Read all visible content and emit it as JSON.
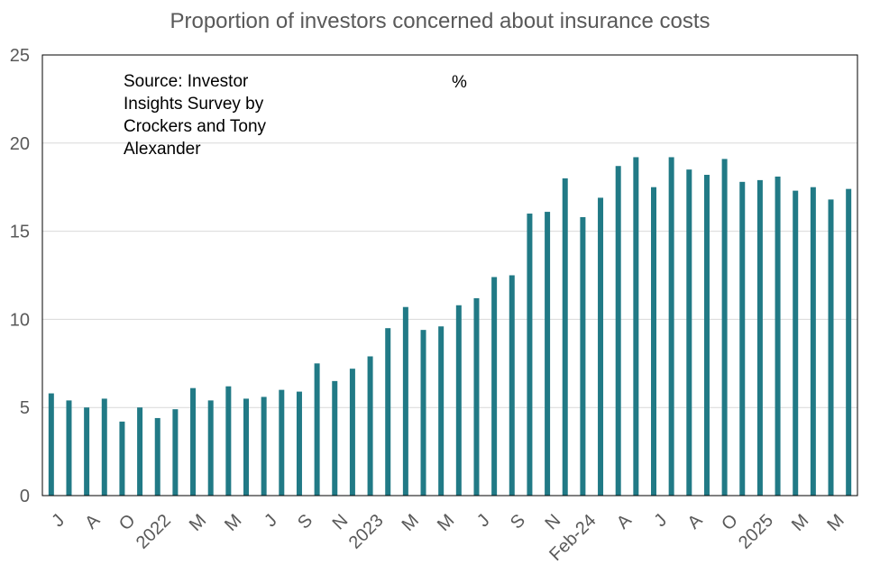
{
  "chart_data": {
    "type": "bar",
    "title": "Proportion of investors concerned about insurance costs",
    "annotation": "Source: Investor Insights Survey by Crockers and Tony Alexander",
    "unit_label": "%",
    "ylim": [
      0,
      25
    ],
    "yticks": [
      0,
      5,
      10,
      15,
      20,
      25
    ],
    "grid": true,
    "bar_color": "#217A86",
    "xtick_labels": [
      {
        "index": 0,
        "label": "J"
      },
      {
        "index": 2,
        "label": "A"
      },
      {
        "index": 4,
        "label": "O"
      },
      {
        "index": 6,
        "label": "2022"
      },
      {
        "index": 8,
        "label": "M"
      },
      {
        "index": 10,
        "label": "M"
      },
      {
        "index": 12,
        "label": "J"
      },
      {
        "index": 14,
        "label": "S"
      },
      {
        "index": 16,
        "label": "N"
      },
      {
        "index": 18,
        "label": "2023"
      },
      {
        "index": 20,
        "label": "M"
      },
      {
        "index": 22,
        "label": "M"
      },
      {
        "index": 24,
        "label": "J"
      },
      {
        "index": 26,
        "label": "S"
      },
      {
        "index": 28,
        "label": "N"
      },
      {
        "index": 30,
        "label": "Feb-24"
      },
      {
        "index": 32,
        "label": "A"
      },
      {
        "index": 34,
        "label": "J"
      },
      {
        "index": 36,
        "label": "A"
      },
      {
        "index": 38,
        "label": "O"
      },
      {
        "index": 40,
        "label": "2025"
      },
      {
        "index": 42,
        "label": "M"
      },
      {
        "index": 44,
        "label": "M"
      }
    ],
    "values": [
      5.8,
      5.4,
      5.0,
      5.5,
      4.2,
      5.0,
      4.4,
      4.9,
      6.1,
      5.4,
      6.2,
      5.5,
      5.6,
      6.0,
      5.9,
      7.5,
      6.5,
      7.2,
      7.9,
      9.5,
      10.7,
      9.4,
      9.6,
      10.8,
      11.2,
      12.4,
      12.5,
      16.0,
      16.1,
      18.0,
      15.8,
      16.9,
      18.7,
      19.2,
      17.5,
      19.2,
      18.5,
      18.2,
      19.1,
      17.8,
      17.9,
      18.1,
      17.3,
      17.5,
      16.8,
      17.4
    ]
  }
}
